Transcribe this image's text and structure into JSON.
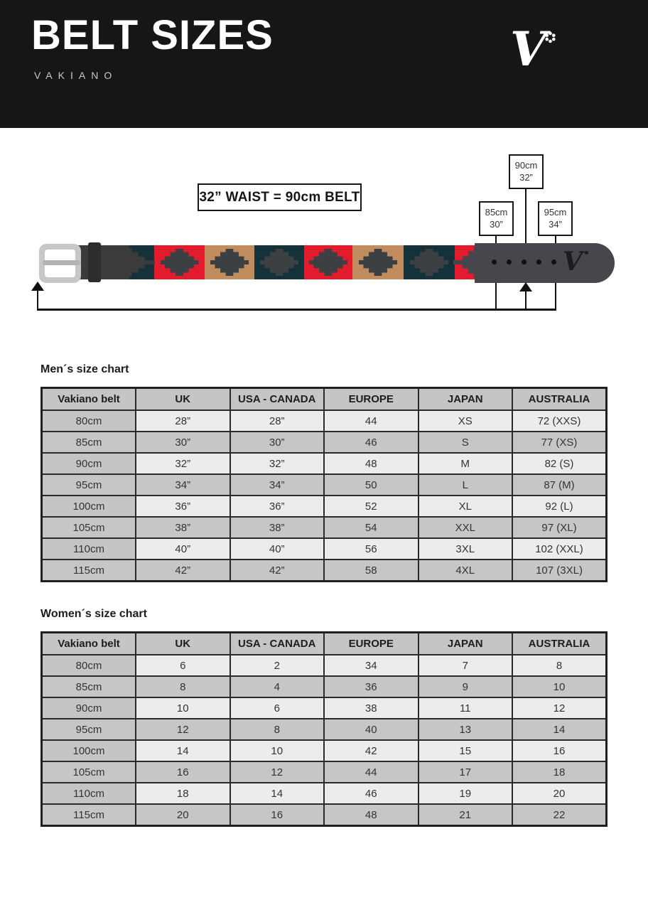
{
  "header": {
    "title": "BELT SIZES",
    "brand": "VAKIANO",
    "logo_letter": "V",
    "logo_flower_icon": "flower-icon"
  },
  "diagram": {
    "formula": "32” WAIST = 90cm BELT",
    "labels": [
      {
        "cm": "90cm",
        "inch": "32”"
      },
      {
        "cm": "85cm",
        "inch": "30”"
      },
      {
        "cm": "95cm",
        "inch": "34”"
      }
    ],
    "belt_mark": "V",
    "holes": 5,
    "pattern": [
      "teal",
      "red",
      "tan",
      "teal",
      "red",
      "tan",
      "teal",
      "red"
    ],
    "colors": {
      "red": "#e41b2d",
      "teal": "#15313a",
      "tan": "#c18d5e",
      "diamond": "#3d4043",
      "strap": "#3b3b3b",
      "keeper": "#2d2d2d",
      "tip": "#46464c",
      "buckle": "#c7c7c7",
      "prong": "#b3b3b3"
    }
  },
  "mens": {
    "title": "Men´s size chart",
    "columns": [
      "Vakiano belt",
      "UK",
      "USA - CANADA",
      "EUROPE",
      "JAPAN",
      "AUSTRALIA"
    ],
    "rows": [
      [
        "80cm",
        "28”",
        "28”",
        "44",
        "XS",
        "72 (XXS)"
      ],
      [
        "85cm",
        "30”",
        "30”",
        "46",
        "S",
        "77 (XS)"
      ],
      [
        "90cm",
        "32”",
        "32”",
        "48",
        "M",
        "82 (S)"
      ],
      [
        "95cm",
        "34”",
        "34”",
        "50",
        "L",
        "87 (M)"
      ],
      [
        "100cm",
        "36”",
        "36”",
        "52",
        "XL",
        "92 (L)"
      ],
      [
        "105cm",
        "38”",
        "38”",
        "54",
        "XXL",
        "97 (XL)"
      ],
      [
        "110cm",
        "40”",
        "40”",
        "56",
        "3XL",
        "102 (XXL)"
      ],
      [
        "115cm",
        "42”",
        "42”",
        "58",
        "4XL",
        "107 (3XL)"
      ]
    ]
  },
  "womens": {
    "title": "Women´s size chart",
    "columns": [
      "Vakiano belt",
      "UK",
      "USA - CANADA",
      "EUROPE",
      "JAPAN",
      "AUSTRALIA"
    ],
    "rows": [
      [
        "80cm",
        "6",
        "2",
        "34",
        "7",
        "8"
      ],
      [
        "85cm",
        "8",
        "4",
        "36",
        "9",
        "10"
      ],
      [
        "90cm",
        "10",
        "6",
        "38",
        "11",
        "12"
      ],
      [
        "95cm",
        "12",
        "8",
        "40",
        "13",
        "14"
      ],
      [
        "100cm",
        "14",
        "10",
        "42",
        "15",
        "16"
      ],
      [
        "105cm",
        "16",
        "12",
        "44",
        "17",
        "18"
      ],
      [
        "110cm",
        "18",
        "14",
        "46",
        "19",
        "20"
      ],
      [
        "115cm",
        "20",
        "16",
        "48",
        "21",
        "22"
      ]
    ]
  }
}
